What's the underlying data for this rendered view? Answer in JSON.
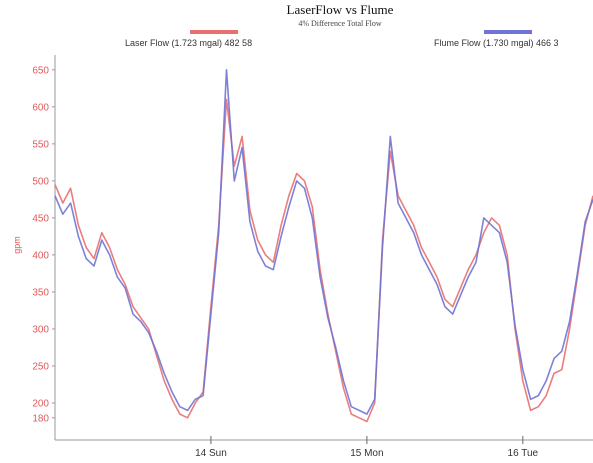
{
  "chart_data": {
    "type": "line",
    "title": "LaserFlow vs Flume",
    "subtitle": "4% Difference Total Flow",
    "ylabel": "gpm",
    "xlabel": "",
    "ylim": [
      150,
      670
    ],
    "xlim": [
      0,
      3.45
    ],
    "y_ticks": [
      180,
      200,
      250,
      300,
      350,
      400,
      450,
      500,
      550,
      600,
      650
    ],
    "x_ticks": [
      {
        "value": 1.0,
        "label": "14 Sun"
      },
      {
        "value": 2.0,
        "label": "15 Mon"
      },
      {
        "value": 3.0,
        "label": "16 Tue"
      }
    ],
    "grid": false,
    "legend_placement": "top",
    "series": [
      {
        "name": "Laser Flow (1.723 mgal) 482 58",
        "color": "#e87070",
        "x": [
          0.0,
          0.05,
          0.1,
          0.15,
          0.2,
          0.25,
          0.3,
          0.35,
          0.4,
          0.45,
          0.5,
          0.55,
          0.6,
          0.65,
          0.7,
          0.75,
          0.8,
          0.85,
          0.9,
          0.95,
          1.0,
          1.05,
          1.1,
          1.15,
          1.2,
          1.25,
          1.3,
          1.35,
          1.4,
          1.45,
          1.5,
          1.55,
          1.6,
          1.65,
          1.7,
          1.75,
          1.8,
          1.85,
          1.9,
          1.95,
          2.0,
          2.05,
          2.1,
          2.15,
          2.2,
          2.25,
          2.3,
          2.35,
          2.4,
          2.45,
          2.5,
          2.55,
          2.6,
          2.65,
          2.7,
          2.75,
          2.8,
          2.85,
          2.9,
          2.95,
          3.0,
          3.05,
          3.1,
          3.15,
          3.2,
          3.25,
          3.3,
          3.35,
          3.4,
          3.45
        ],
        "values": [
          495,
          470,
          490,
          440,
          410,
          395,
          430,
          410,
          380,
          360,
          330,
          315,
          300,
          265,
          230,
          205,
          185,
          180,
          200,
          215,
          330,
          440,
          610,
          520,
          560,
          460,
          420,
          400,
          390,
          440,
          480,
          510,
          500,
          465,
          380,
          320,
          270,
          220,
          185,
          180,
          175,
          200,
          420,
          540,
          480,
          460,
          440,
          410,
          390,
          370,
          340,
          330,
          355,
          380,
          400,
          430,
          450,
          440,
          400,
          300,
          230,
          190,
          195,
          210,
          240,
          245,
          300,
          370,
          440,
          480
        ]
      },
      {
        "name": "Flume Flow (1.730 mgal) 466 3",
        "color": "#6f74d4",
        "x": [
          0.0,
          0.05,
          0.1,
          0.15,
          0.2,
          0.25,
          0.3,
          0.35,
          0.4,
          0.45,
          0.5,
          0.55,
          0.6,
          0.65,
          0.7,
          0.75,
          0.8,
          0.85,
          0.9,
          0.95,
          1.0,
          1.05,
          1.1,
          1.15,
          1.2,
          1.25,
          1.3,
          1.35,
          1.4,
          1.45,
          1.5,
          1.55,
          1.6,
          1.65,
          1.7,
          1.75,
          1.8,
          1.85,
          1.9,
          1.95,
          2.0,
          2.05,
          2.1,
          2.15,
          2.2,
          2.25,
          2.3,
          2.35,
          2.4,
          2.45,
          2.5,
          2.55,
          2.6,
          2.65,
          2.7,
          2.75,
          2.8,
          2.85,
          2.9,
          2.95,
          3.0,
          3.05,
          3.1,
          3.15,
          3.2,
          3.25,
          3.3,
          3.35,
          3.4,
          3.45
        ],
        "values": [
          480,
          455,
          470,
          425,
          395,
          385,
          420,
          400,
          370,
          355,
          320,
          310,
          295,
          270,
          240,
          215,
          195,
          190,
          205,
          210,
          320,
          430,
          650,
          500,
          545,
          445,
          405,
          385,
          380,
          425,
          465,
          500,
          490,
          450,
          370,
          315,
          275,
          230,
          195,
          190,
          185,
          205,
          410,
          560,
          470,
          450,
          430,
          400,
          380,
          360,
          330,
          320,
          345,
          370,
          390,
          450,
          440,
          430,
          390,
          305,
          245,
          205,
          210,
          230,
          260,
          270,
          310,
          375,
          445,
          475
        ]
      }
    ]
  }
}
